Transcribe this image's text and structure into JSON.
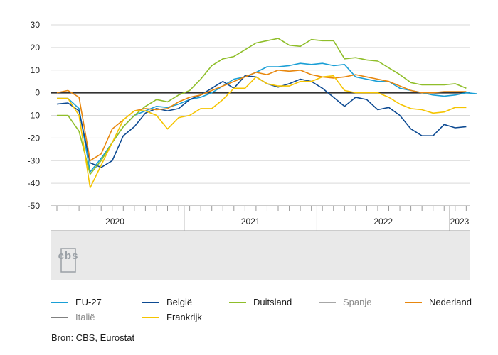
{
  "chart_data": {
    "type": "line",
    "ylim": [
      -50,
      30
    ],
    "yticks": [
      30,
      20,
      10,
      0,
      -10,
      -20,
      -30,
      -40,
      -50
    ],
    "x_unit": "month index starting January 2020",
    "year_labels": [
      "2020",
      "2021",
      "2022",
      "2023"
    ],
    "series": [
      {
        "name": "EU-27",
        "color": "#1a9fd6",
        "dimmed": false,
        "values": [
          -2.5,
          -2.5,
          -7,
          -35,
          -29,
          -22,
          -15,
          -10,
          -8,
          -6,
          -6.5,
          -5,
          -3,
          -2,
          0,
          3,
          6,
          7,
          9,
          11.5,
          11.5,
          12,
          13,
          12.5,
          13,
          12,
          12.5,
          7,
          6,
          5,
          5,
          2,
          1,
          0,
          -1,
          -1.5,
          -1,
          0,
          -0.5
        ]
      },
      {
        "name": "België",
        "color": "#0d4a92",
        "dimmed": false,
        "values": [
          -5,
          -4.5,
          -8,
          -31,
          -33,
          -30,
          -19,
          -15,
          -9,
          -7,
          -8,
          -7,
          -3,
          -1,
          2,
          5,
          2,
          7.5,
          7,
          4,
          2.5,
          4,
          6,
          5,
          2,
          -2,
          -6,
          -2,
          -3,
          -7.5,
          -6.5,
          -10,
          -16,
          -19,
          -19,
          -14,
          -15.5,
          -15
        ]
      },
      {
        "name": "Duitsland",
        "color": "#8fbe2a",
        "dimmed": false,
        "values": [
          -10,
          -10,
          -17,
          -36,
          -30,
          -22,
          -15,
          -10,
          -6,
          -3,
          -4,
          -1,
          1,
          6,
          12,
          15,
          16,
          19,
          22,
          23,
          24,
          21,
          20.5,
          23.5,
          23,
          23,
          15,
          15.5,
          14.5,
          14,
          11,
          8,
          4.5,
          3.5,
          3.5,
          3.5,
          4,
          2
        ]
      },
      {
        "name": "Spanje",
        "color": "#8a8a8a",
        "dimmed": true,
        "values": []
      },
      {
        "name": "Nederland",
        "color": "#e8870e",
        "dimmed": false,
        "values": [
          0,
          1,
          -2,
          -30,
          -27,
          -16,
          -12,
          -8,
          -7,
          -7.5,
          -7,
          -4,
          -2,
          -1,
          1,
          3,
          5,
          7,
          9,
          8,
          10,
          9.5,
          10,
          8,
          7,
          6.5,
          7,
          8,
          7,
          6,
          5,
          3,
          1,
          0,
          0,
          0.5,
          0.5,
          0.5
        ]
      },
      {
        "name": "Italië",
        "color": "#555555",
        "dimmed": true,
        "values": []
      },
      {
        "name": "Frankrijk",
        "color": "#f5c400",
        "dimmed": false,
        "values": [
          -2.5,
          -2.5,
          -10,
          -42,
          -32,
          -22,
          -12,
          -8,
          -8,
          -10,
          -16,
          -11,
          -10,
          -7,
          -7,
          -3,
          2,
          2,
          7,
          4,
          3,
          3,
          5,
          5,
          7,
          7.5,
          1,
          0,
          0,
          0,
          -2,
          -5,
          -7,
          -7.5,
          -9,
          -8.5,
          -6.5,
          -6.5
        ]
      }
    ]
  },
  "legend": {
    "items": [
      {
        "label": "EU-27",
        "color": "#1a9fd6",
        "dimmed": false
      },
      {
        "label": "België",
        "color": "#0d4a92",
        "dimmed": false
      },
      {
        "label": "Duitsland",
        "color": "#8fbe2a",
        "dimmed": false
      },
      {
        "label": "Spanje",
        "color": "#8a8a8a",
        "dimmed": true
      },
      {
        "label": "Nederland",
        "color": "#e8870e",
        "dimmed": false
      },
      {
        "label": "Italië",
        "color": "#555555",
        "dimmed": true
      },
      {
        "label": "Frankrijk",
        "color": "#f5c400",
        "dimmed": false
      }
    ]
  },
  "logo": {
    "name": "cbs-logo",
    "text": "cbs"
  },
  "source": {
    "text": "Bron: CBS, Eurostat"
  }
}
